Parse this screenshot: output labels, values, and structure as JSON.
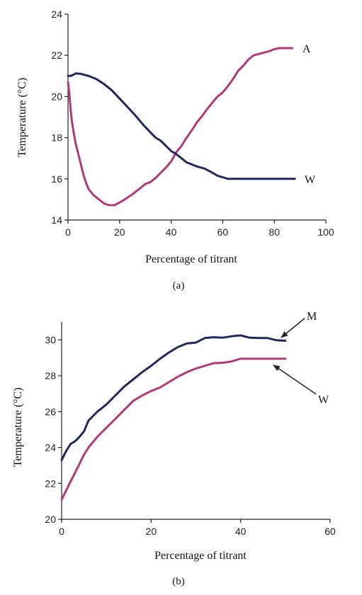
{
  "chart_data": [
    {
      "type": "line",
      "panel_label": "(a)",
      "xlabel": "Percentage of titrant",
      "ylabel": "Temperature (°C)",
      "xlim": [
        0,
        100
      ],
      "ylim": [
        14,
        24
      ],
      "xticks": [
        0,
        20,
        40,
        60,
        80,
        100
      ],
      "yticks": [
        14,
        16,
        18,
        20,
        22,
        24
      ],
      "grid": false,
      "series": [
        {
          "name": "A",
          "color": "#b03a78",
          "points": [
            [
              0,
              20.7
            ],
            [
              0.5,
              20.2
            ],
            [
              1,
              19.4
            ],
            [
              1.5,
              18.8
            ],
            [
              2,
              18.4
            ],
            [
              3,
              17.7
            ],
            [
              4,
              17.2
            ],
            [
              5,
              16.7
            ],
            [
              6,
              16.2
            ],
            [
              7,
              15.8
            ],
            [
              8,
              15.5
            ],
            [
              10,
              15.2
            ],
            [
              12,
              15.0
            ],
            [
              14,
              14.8
            ],
            [
              16,
              14.72
            ],
            [
              18,
              14.72
            ],
            [
              20,
              14.85
            ],
            [
              22,
              15.0
            ],
            [
              25,
              15.25
            ],
            [
              28,
              15.55
            ],
            [
              30,
              15.75
            ],
            [
              32,
              15.85
            ],
            [
              34,
              16.05
            ],
            [
              36,
              16.3
            ],
            [
              38,
              16.55
            ],
            [
              40,
              16.85
            ],
            [
              42,
              17.3
            ],
            [
              44,
              17.6
            ],
            [
              46,
              18.0
            ],
            [
              48,
              18.35
            ],
            [
              50,
              18.75
            ],
            [
              52,
              19.05
            ],
            [
              54,
              19.4
            ],
            [
              56,
              19.7
            ],
            [
              58,
              20.0
            ],
            [
              60,
              20.2
            ],
            [
              62,
              20.5
            ],
            [
              64,
              20.85
            ],
            [
              66,
              21.25
            ],
            [
              68,
              21.5
            ],
            [
              70,
              21.8
            ],
            [
              72,
              22.0
            ],
            [
              75,
              22.1
            ],
            [
              78,
              22.2
            ],
            [
              80,
              22.3
            ],
            [
              82,
              22.35
            ],
            [
              85,
              22.35
            ],
            [
              87,
              22.35
            ]
          ]
        },
        {
          "name": "W",
          "color": "#1f2a5a",
          "points": [
            [
              0,
              21.0
            ],
            [
              1,
              21.0
            ],
            [
              2,
              21.05
            ],
            [
              3,
              21.12
            ],
            [
              5,
              21.1
            ],
            [
              8,
              21.0
            ],
            [
              11,
              20.85
            ],
            [
              14,
              20.6
            ],
            [
              17,
              20.3
            ],
            [
              20,
              19.9
            ],
            [
              23,
              19.5
            ],
            [
              26,
              19.1
            ],
            [
              29,
              18.65
            ],
            [
              32,
              18.25
            ],
            [
              34,
              18.0
            ],
            [
              36,
              17.85
            ],
            [
              38,
              17.6
            ],
            [
              40,
              17.35
            ],
            [
              42,
              17.2
            ],
            [
              44,
              17.0
            ],
            [
              46,
              16.8
            ],
            [
              48,
              16.7
            ],
            [
              50,
              16.6
            ],
            [
              53,
              16.5
            ],
            [
              56,
              16.3
            ],
            [
              58,
              16.15
            ],
            [
              60,
              16.08
            ],
            [
              62,
              16.0
            ],
            [
              66,
              16.0
            ],
            [
              70,
              16.0
            ],
            [
              75,
              16.0
            ],
            [
              80,
              16.0
            ],
            [
              85,
              16.0
            ],
            [
              88,
              16.0
            ]
          ]
        }
      ]
    },
    {
      "type": "line",
      "panel_label": "(b)",
      "xlabel": "Percentage of titrant",
      "ylabel": "Temperature (°C)",
      "xlim": [
        0,
        60
      ],
      "ylim": [
        20,
        31
      ],
      "xticks": [
        0,
        20,
        40,
        60
      ],
      "yticks": [
        20,
        22,
        24,
        26,
        28,
        30
      ],
      "grid": false,
      "series": [
        {
          "name": "M",
          "color": "#1f2a5a",
          "points": [
            [
              0,
              23.3
            ],
            [
              1,
              23.8
            ],
            [
              2,
              24.2
            ],
            [
              3,
              24.35
            ],
            [
              4,
              24.6
            ],
            [
              5,
              24.9
            ],
            [
              6,
              25.5
            ],
            [
              8,
              26.0
            ],
            [
              10,
              26.4
            ],
            [
              12,
              26.9
            ],
            [
              14,
              27.4
            ],
            [
              16,
              27.8
            ],
            [
              18,
              28.2
            ],
            [
              20,
              28.55
            ],
            [
              22,
              28.95
            ],
            [
              24,
              29.3
            ],
            [
              26,
              29.6
            ],
            [
              28,
              29.8
            ],
            [
              30,
              29.85
            ],
            [
              32,
              30.1
            ],
            [
              34,
              30.15
            ],
            [
              36,
              30.12
            ],
            [
              38,
              30.2
            ],
            [
              40,
              30.25
            ],
            [
              42,
              30.12
            ],
            [
              44,
              30.1
            ],
            [
              46,
              30.1
            ],
            [
              48,
              29.98
            ],
            [
              50,
              29.95
            ]
          ]
        },
        {
          "name": "W",
          "color": "#b03a78",
          "points": [
            [
              0,
              21.1
            ],
            [
              1,
              21.6
            ],
            [
              2,
              22.1
            ],
            [
              3,
              22.6
            ],
            [
              4,
              23.1
            ],
            [
              5,
              23.6
            ],
            [
              6,
              24.0
            ],
            [
              8,
              24.6
            ],
            [
              10,
              25.1
            ],
            [
              12,
              25.6
            ],
            [
              14,
              26.1
            ],
            [
              16,
              26.6
            ],
            [
              18,
              26.9
            ],
            [
              20,
              27.15
            ],
            [
              22,
              27.35
            ],
            [
              24,
              27.65
            ],
            [
              26,
              27.95
            ],
            [
              28,
              28.2
            ],
            [
              30,
              28.4
            ],
            [
              32,
              28.55
            ],
            [
              34,
              28.7
            ],
            [
              36,
              28.72
            ],
            [
              38,
              28.8
            ],
            [
              40,
              28.95
            ],
            [
              42,
              28.95
            ],
            [
              45,
              28.95
            ],
            [
              48,
              28.95
            ],
            [
              50,
              28.95
            ]
          ]
        }
      ]
    }
  ]
}
